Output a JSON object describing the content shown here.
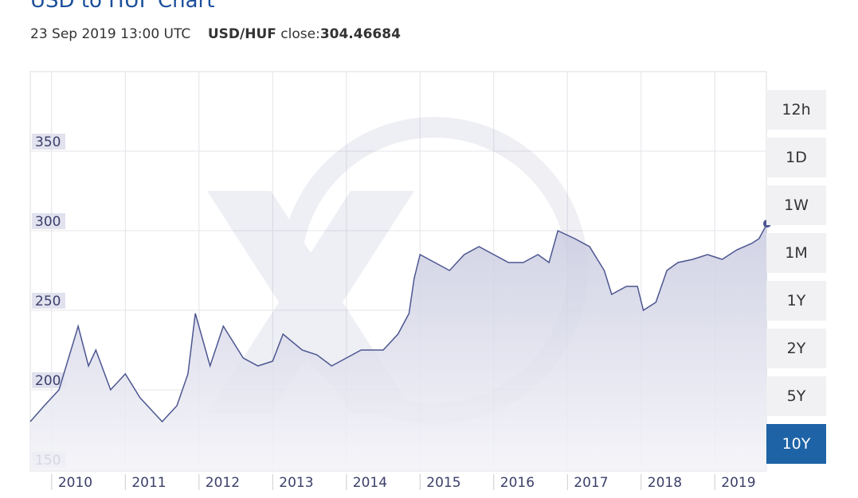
{
  "chart_data": {
    "type": "line",
    "title": "USD to HUF Chart",
    "timestamp": "23 Sep 2019 13:00 UTC",
    "pair": "USD/HUF",
    "close_label": "close:",
    "close_value": "304.46684",
    "x": [
      2009.71,
      2009.9,
      2010.1,
      2010.36,
      2010.5,
      2010.6,
      2010.8,
      2011.0,
      2011.2,
      2011.4,
      2011.5,
      2011.7,
      2011.85,
      2011.95,
      2012.15,
      2012.33,
      2012.6,
      2012.8,
      2013.0,
      2013.14,
      2013.4,
      2013.6,
      2013.8,
      2014.0,
      2014.2,
      2014.5,
      2014.7,
      2014.85,
      2014.92,
      2015.0,
      2015.2,
      2015.4,
      2015.6,
      2015.8,
      2016.0,
      2016.2,
      2016.4,
      2016.6,
      2016.75,
      2016.87,
      2017.1,
      2017.3,
      2017.5,
      2017.6,
      2017.8,
      2017.95,
      2018.03,
      2018.2,
      2018.35,
      2018.5,
      2018.7,
      2018.9,
      2019.1,
      2019.3,
      2019.5,
      2019.6,
      2019.71
    ],
    "values": [
      180,
      190,
      200,
      240,
      215,
      225,
      200,
      210,
      195,
      185,
      180,
      190,
      210,
      248,
      215,
      240,
      220,
      215,
      218,
      235,
      225,
      222,
      215,
      220,
      225,
      225,
      235,
      248,
      270,
      285,
      280,
      275,
      285,
      290,
      285,
      280,
      280,
      285,
      280,
      300,
      295,
      290,
      275,
      260,
      265,
      265,
      250,
      255,
      275,
      280,
      282,
      285,
      282,
      288,
      292,
      295,
      304.46684
    ],
    "color": "#4d5690",
    "xlim": [
      2009.71,
      2019.7
    ],
    "xticks": [
      2010,
      2011,
      2012,
      2013,
      2014,
      2015,
      2016,
      2017,
      2018,
      2019
    ],
    "ylim": [
      149,
      400
    ],
    "yticks": [
      150,
      200,
      250,
      300,
      350
    ],
    "grid": true
  },
  "buttons": [
    {
      "label": "12h",
      "active": false
    },
    {
      "label": "1D",
      "active": false
    },
    {
      "label": "1W",
      "active": false
    },
    {
      "label": "1M",
      "active": false
    },
    {
      "label": "1Y",
      "active": false
    },
    {
      "label": "2Y",
      "active": false
    },
    {
      "label": "5Y",
      "active": false
    },
    {
      "label": "10Y",
      "active": true
    }
  ]
}
